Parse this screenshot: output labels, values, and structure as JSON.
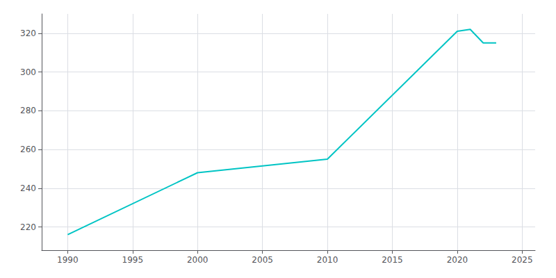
{
  "chart_data": {
    "type": "line",
    "x": [
      1990,
      2000,
      2010,
      2020,
      2021,
      2022,
      2023
    ],
    "values": [
      216,
      248,
      255,
      321,
      322,
      315,
      315
    ],
    "color": "#00C4C4",
    "xlim": [
      1988,
      2026
    ],
    "ylim": [
      208,
      330
    ],
    "xticks": [
      1990,
      1995,
      2000,
      2005,
      2010,
      2015,
      2020,
      2025
    ],
    "yticks": [
      220,
      240,
      260,
      280,
      300,
      320
    ],
    "grid": true
  }
}
